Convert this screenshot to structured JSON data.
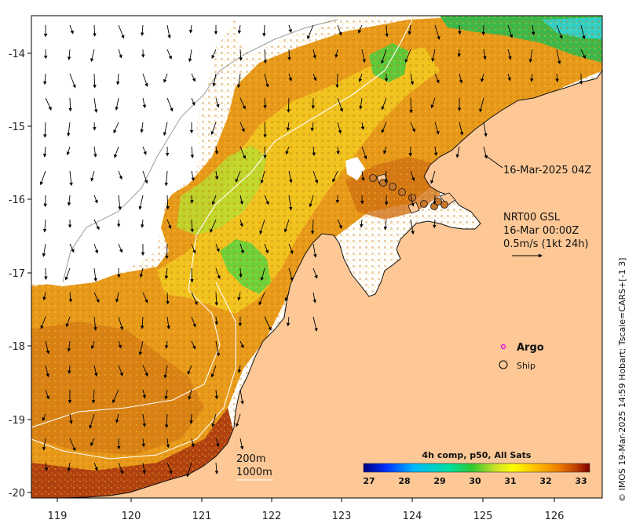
{
  "x_ticks": [
    "119",
    "120",
    "121",
    "122",
    "123",
    "124",
    "125",
    "126"
  ],
  "y_ticks": [
    "-14",
    "-15",
    "-16",
    "-17",
    "-18",
    "-19",
    "-20"
  ],
  "annotations": {
    "date_label": "16-Mar-2025 04Z",
    "current_title": "NRT00 GSL",
    "current_time": "16-Mar 00:00Z",
    "current_scale": "0.5m/s (1kt 24h)"
  },
  "legend": {
    "argo_label": "Argo",
    "ship_label": "Ship",
    "argo_color": "#e000e0"
  },
  "isobaths": {
    "label_200": "200m",
    "label_1000": "1000m"
  },
  "colorbar": {
    "title": "4h comp, p50, All Sats",
    "ticks": [
      "27",
      "28",
      "29",
      "30",
      "31",
      "32",
      "33"
    ],
    "colors": [
      "#00007f",
      "#0030ff",
      "#00b8ff",
      "#00e0a0",
      "#30c830",
      "#a8dc28",
      "#ffff00",
      "#ffc000",
      "#f08000",
      "#c04000",
      "#7f0000"
    ]
  },
  "credit": "© IMOS 19-Mar-2025 14:59 Hobart; Tscale=CARS+[-1 3]",
  "colors": {
    "land": "#fdc896",
    "coast": "#111111",
    "sst_warm": "#e89a1a",
    "sst_green": "#6cd23a"
  }
}
